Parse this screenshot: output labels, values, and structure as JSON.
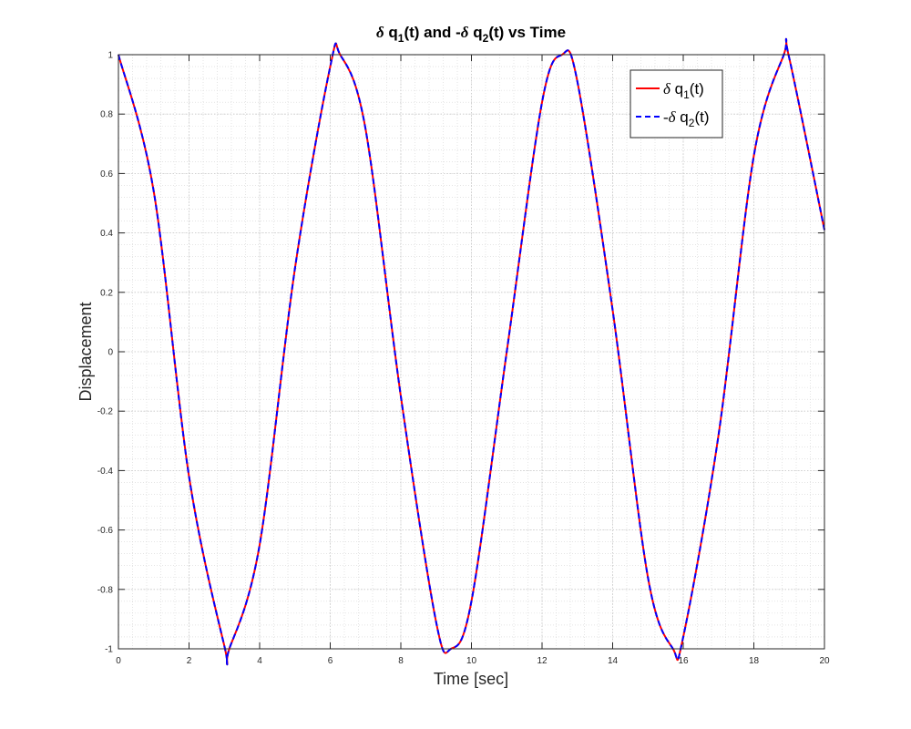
{
  "chart_data": {
    "type": "line",
    "title": {
      "p1": "δ",
      "p2": " q",
      "p3": "1",
      "p4": "(t) and -",
      "p5": "δ",
      "p6": " q",
      "p7": "2",
      "p8": "(t) vs Time"
    },
    "xlabel": "Time [sec]",
    "ylabel": "Displacement",
    "xlim": [
      0,
      20
    ],
    "ylim": [
      -1,
      1
    ],
    "x_ticks": [
      0,
      2,
      4,
      6,
      8,
      10,
      12,
      14,
      16,
      18,
      20
    ],
    "y_ticks": [
      -1,
      -0.8,
      -0.6,
      -0.4,
      -0.2,
      0,
      0.2,
      0.4,
      0.6,
      0.8,
      1
    ],
    "grid": true,
    "minor_grid": true,
    "legend_position": "top-right",
    "x": [
      0,
      1,
      2,
      3,
      3.14,
      4,
      5,
      6,
      6.28,
      7,
      8,
      9,
      9.42,
      10,
      11,
      12,
      12.57,
      13,
      14,
      15,
      15.71,
      16,
      17,
      18,
      18.85,
      19,
      20
    ],
    "series": [
      {
        "key": "dq1",
        "legend": {
          "sym": "δ",
          "main": " q",
          "sub": "1",
          "tail": "(t)"
        },
        "color": "#ff0000",
        "style": "solid",
        "values": [
          1,
          0.54,
          -0.42,
          -0.99,
          -1,
          -0.65,
          0.28,
          0.96,
          1,
          0.75,
          -0.15,
          -0.91,
          -1,
          -0.84,
          0.0,
          0.84,
          1,
          0.91,
          0.14,
          -0.76,
          -1,
          -0.96,
          -0.28,
          0.66,
          1,
          0.99,
          0.41
        ]
      },
      {
        "key": "neg_dq2",
        "legend": {
          "sym": "-δ",
          "main": " q",
          "sub": "2",
          "tail": "(t)"
        },
        "color": "#0000ff",
        "style": "dashed",
        "values": [
          1,
          0.54,
          -0.42,
          -0.99,
          -1,
          -0.65,
          0.28,
          0.96,
          1,
          0.75,
          -0.15,
          -0.91,
          -1,
          -0.84,
          0.0,
          0.84,
          1,
          0.91,
          0.14,
          -0.76,
          -1,
          -0.96,
          -0.28,
          0.66,
          1,
          0.99,
          0.41
        ]
      }
    ]
  }
}
